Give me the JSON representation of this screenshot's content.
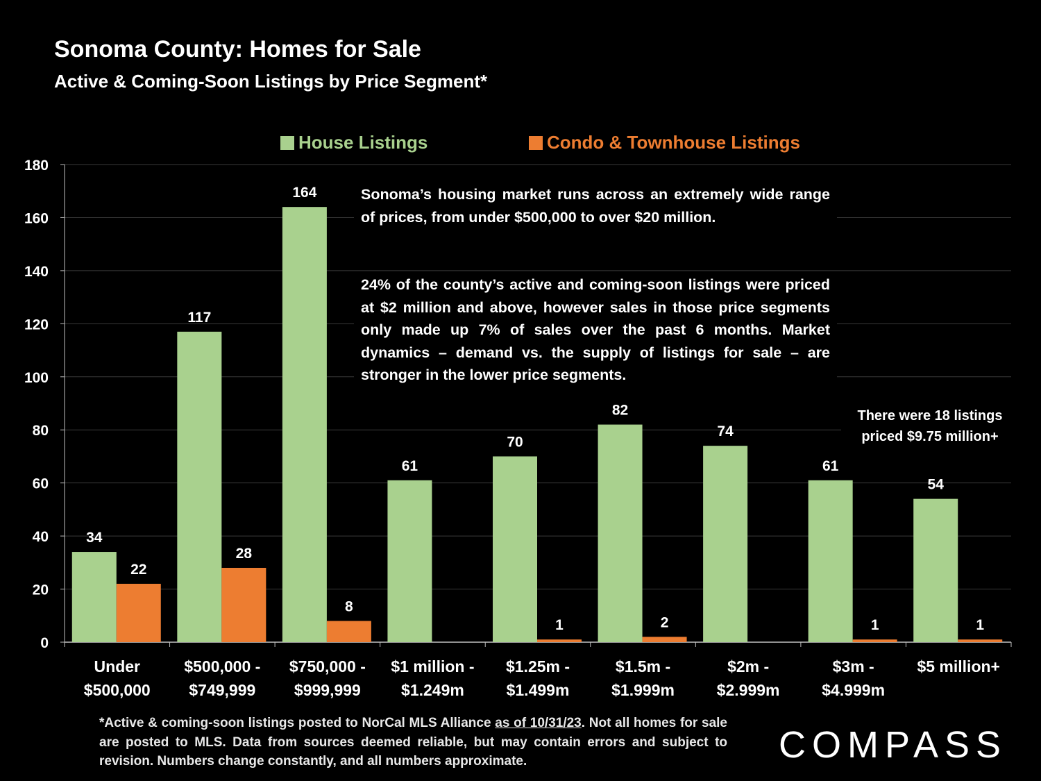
{
  "header": {
    "title": "Sonoma County: Homes for Sale",
    "subtitle": "Active & Coming-Soon Listings by Price Segment*"
  },
  "colors": {
    "house": "#a9d18e",
    "condo": "#ed7d31",
    "background": "#000000",
    "grid": "#3a3a3a"
  },
  "chart_data": {
    "type": "bar",
    "title": "Sonoma County: Homes for Sale",
    "subtitle": "Active & Coming-Soon Listings by Price Segment*",
    "categories": [
      [
        "Under",
        "$500,000"
      ],
      [
        "$500,000 -",
        "$749,999"
      ],
      [
        "$750,000 -",
        "$999,999"
      ],
      [
        "$1 million -",
        "$1.249m"
      ],
      [
        "$1.25m -",
        "$1.499m"
      ],
      [
        "$1.5m -",
        "$1.999m"
      ],
      [
        "$2m -",
        "$2.999m"
      ],
      [
        "$3m -",
        "$4.999m"
      ],
      [
        "$5 million+"
      ]
    ],
    "series": [
      {
        "name": "House Listings",
        "values": [
          34,
          117,
          164,
          61,
          70,
          82,
          74,
          61,
          54
        ],
        "labels": [
          "34",
          "117",
          "164",
          "61",
          "70",
          "82",
          "74",
          "61",
          "54"
        ]
      },
      {
        "name": "Condo & Townhouse Listings",
        "values": [
          22,
          28,
          8,
          0,
          1,
          2,
          0,
          1,
          1
        ],
        "labels": [
          "22",
          "28",
          "8",
          "",
          "1",
          "2",
          "",
          "1",
          "1"
        ]
      }
    ],
    "ylim": [
      0,
      180
    ],
    "yticks": [
      0,
      20,
      40,
      60,
      80,
      100,
      120,
      140,
      160,
      180
    ],
    "grid": true,
    "legend": "top",
    "annotations": [
      "Sonoma’s housing market runs across an extremely wide range of prices, from under $500,000 to over $20 million.",
      "24% of the county’s active and coming-soon listings were priced at $2 million and above, however sales in those price segments only made up 7% of sales over the past 6 months. Market dynamics – demand vs. the supply of listings for sale – are stronger in the lower price segments.",
      "There were 18 listings priced $9.75 million+"
    ]
  },
  "footnote": {
    "before": "*Active & coming-soon listings posted to NorCal MLS Alliance ",
    "underlined": "as of 10/31/23",
    "after": ". Not all homes for sale are posted to MLS. Data from sources deemed reliable, but may contain errors and subject to revision. Numbers change constantly, and all numbers approximate."
  },
  "logo": {
    "text": "COMPASS"
  }
}
